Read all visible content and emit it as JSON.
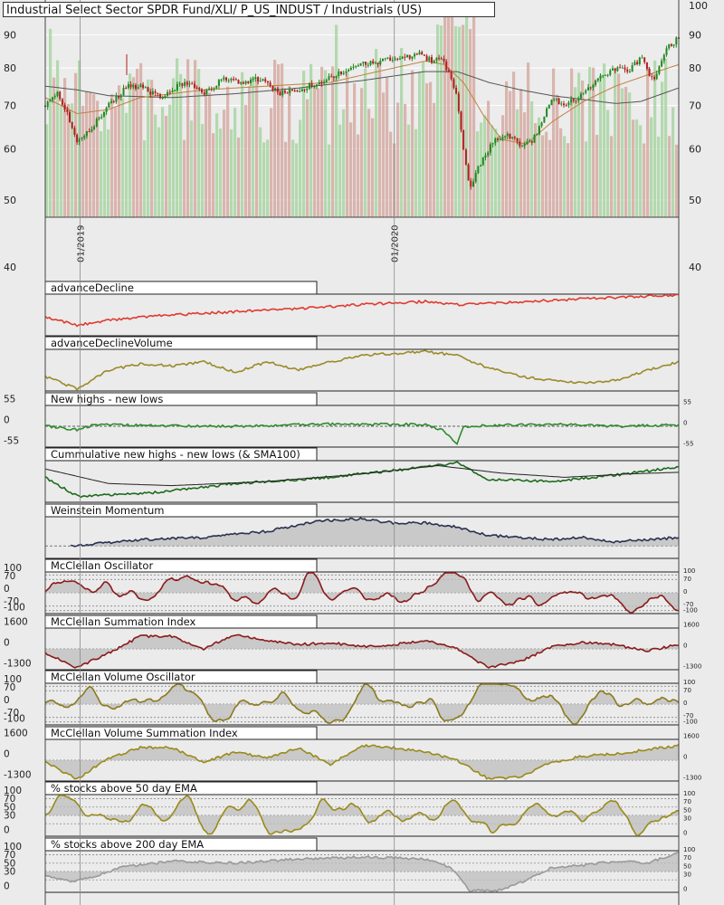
{
  "chart_data": {
    "type": "line",
    "title": "Industrial Select Sector SPDR Fund/XLI/ P_US_INDUST / Industrials (US)",
    "price_panel": {
      "type": "candlestick",
      "y_scale": "log",
      "y_ticks_left": [
        40,
        50,
        60,
        70,
        80,
        90
      ],
      "y_ticks_right": [
        40,
        50,
        60,
        70,
        80,
        90,
        100
      ],
      "x_ticks": [
        {
          "label": "01/2019",
          "t": 0.055
        },
        {
          "label": "01/2020",
          "t": 0.551
        }
      ],
      "close_path": [
        {
          "t": 0.0,
          "v": 70
        },
        {
          "t": 0.02,
          "v": 73
        },
        {
          "t": 0.04,
          "v": 66
        },
        {
          "t": 0.05,
          "v": 62
        },
        {
          "t": 0.07,
          "v": 64
        },
        {
          "t": 0.1,
          "v": 70
        },
        {
          "t": 0.13,
          "v": 75
        },
        {
          "t": 0.15,
          "v": 75
        },
        {
          "t": 0.18,
          "v": 72
        },
        {
          "t": 0.22,
          "v": 76
        },
        {
          "t": 0.25,
          "v": 73
        },
        {
          "t": 0.28,
          "v": 77
        },
        {
          "t": 0.31,
          "v": 76
        },
        {
          "t": 0.34,
          "v": 77
        },
        {
          "t": 0.37,
          "v": 73
        },
        {
          "t": 0.4,
          "v": 74
        },
        {
          "t": 0.43,
          "v": 76
        },
        {
          "t": 0.47,
          "v": 79
        },
        {
          "t": 0.5,
          "v": 81
        },
        {
          "t": 0.53,
          "v": 82
        },
        {
          "t": 0.57,
          "v": 83
        },
        {
          "t": 0.59,
          "v": 84
        },
        {
          "t": 0.61,
          "v": 82
        },
        {
          "t": 0.62,
          "v": 83
        },
        {
          "t": 0.63,
          "v": 81
        },
        {
          "t": 0.64,
          "v": 77
        },
        {
          "t": 0.65,
          "v": 72
        },
        {
          "t": 0.66,
          "v": 60
        },
        {
          "t": 0.67,
          "v": 52
        },
        {
          "t": 0.68,
          "v": 55
        },
        {
          "t": 0.69,
          "v": 58
        },
        {
          "t": 0.71,
          "v": 62
        },
        {
          "t": 0.73,
          "v": 63
        },
        {
          "t": 0.75,
          "v": 61
        },
        {
          "t": 0.77,
          "v": 62
        },
        {
          "t": 0.79,
          "v": 68
        },
        {
          "t": 0.8,
          "v": 72
        },
        {
          "t": 0.82,
          "v": 70
        },
        {
          "t": 0.84,
          "v": 72
        },
        {
          "t": 0.86,
          "v": 75
        },
        {
          "t": 0.88,
          "v": 78
        },
        {
          "t": 0.9,
          "v": 80
        },
        {
          "t": 0.92,
          "v": 79
        },
        {
          "t": 0.94,
          "v": 83
        },
        {
          "t": 0.96,
          "v": 76
        },
        {
          "t": 0.98,
          "v": 86
        },
        {
          "t": 1.0,
          "v": 89
        }
      ],
      "sma_orange": [
        {
          "t": 0.0,
          "v": 72
        },
        {
          "t": 0.05,
          "v": 68
        },
        {
          "t": 0.1,
          "v": 69
        },
        {
          "t": 0.15,
          "v": 72
        },
        {
          "t": 0.25,
          "v": 74
        },
        {
          "t": 0.35,
          "v": 75
        },
        {
          "t": 0.45,
          "v": 76
        },
        {
          "t": 0.55,
          "v": 80
        },
        {
          "t": 0.6,
          "v": 82
        },
        {
          "t": 0.63,
          "v": 81
        },
        {
          "t": 0.66,
          "v": 76
        },
        {
          "t": 0.69,
          "v": 68
        },
        {
          "t": 0.72,
          "v": 62
        },
        {
          "t": 0.76,
          "v": 61
        },
        {
          "t": 0.8,
          "v": 66
        },
        {
          "t": 0.85,
          "v": 71
        },
        {
          "t": 0.9,
          "v": 75
        },
        {
          "t": 0.95,
          "v": 78
        },
        {
          "t": 1.0,
          "v": 81
        }
      ],
      "sma_gray": [
        {
          "t": 0.0,
          "v": 75
        },
        {
          "t": 0.05,
          "v": 74
        },
        {
          "t": 0.1,
          "v": 72.5
        },
        {
          "t": 0.2,
          "v": 72
        },
        {
          "t": 0.3,
          "v": 73
        },
        {
          "t": 0.4,
          "v": 74.5
        },
        {
          "t": 0.5,
          "v": 76.5
        },
        {
          "t": 0.6,
          "v": 79
        },
        {
          "t": 0.65,
          "v": 79
        },
        {
          "t": 0.7,
          "v": 76
        },
        {
          "t": 0.75,
          "v": 74
        },
        {
          "t": 0.8,
          "v": 72.5
        },
        {
          "t": 0.85,
          "v": 71.5
        },
        {
          "t": 0.9,
          "v": 70.5
        },
        {
          "t": 0.94,
          "v": 71
        },
        {
          "t": 1.0,
          "v": 74.5
        }
      ]
    },
    "indicators": [
      {
        "name": "advanceDecline",
        "color": "#e03a2f",
        "fill": false,
        "labels": [],
        "guides": [],
        "path": [
          [
            0,
            0.55
          ],
          [
            0.05,
            0.75
          ],
          [
            0.1,
            0.62
          ],
          [
            0.2,
            0.5
          ],
          [
            0.3,
            0.42
          ],
          [
            0.4,
            0.35
          ],
          [
            0.5,
            0.25
          ],
          [
            0.6,
            0.18
          ],
          [
            0.65,
            0.25
          ],
          [
            0.7,
            0.22
          ],
          [
            0.8,
            0.15
          ],
          [
            0.9,
            0.08
          ],
          [
            1,
            0.02
          ]
        ]
      },
      {
        "name": "advanceDeclineVolume",
        "color": "#9a8a2a",
        "fill": false,
        "labels": [],
        "guides": [],
        "path": [
          [
            0,
            0.65
          ],
          [
            0.05,
            0.95
          ],
          [
            0.1,
            0.5
          ],
          [
            0.15,
            0.35
          ],
          [
            0.2,
            0.4
          ],
          [
            0.25,
            0.3
          ],
          [
            0.3,
            0.55
          ],
          [
            0.35,
            0.3
          ],
          [
            0.4,
            0.5
          ],
          [
            0.45,
            0.3
          ],
          [
            0.5,
            0.15
          ],
          [
            0.55,
            0.1
          ],
          [
            0.6,
            0.05
          ],
          [
            0.65,
            0.15
          ],
          [
            0.7,
            0.45
          ],
          [
            0.75,
            0.65
          ],
          [
            0.8,
            0.75
          ],
          [
            0.85,
            0.8
          ],
          [
            0.9,
            0.75
          ],
          [
            0.95,
            0.5
          ],
          [
            1,
            0.3
          ]
        ]
      },
      {
        "name": "New highs - new lows",
        "color": "#2e8b2e",
        "fill": false,
        "dashed_mid": true,
        "labels": [
          "55",
          "0",
          "-55"
        ],
        "guides": [],
        "path": [
          [
            0,
            0.5
          ],
          [
            0.05,
            0.58
          ],
          [
            0.08,
            0.45
          ],
          [
            0.15,
            0.48
          ],
          [
            0.3,
            0.5
          ],
          [
            0.45,
            0.45
          ],
          [
            0.6,
            0.46
          ],
          [
            0.63,
            0.6
          ],
          [
            0.65,
            0.95
          ],
          [
            0.66,
            0.5
          ],
          [
            0.8,
            0.45
          ],
          [
            0.9,
            0.5
          ],
          [
            1,
            0.47
          ]
        ]
      },
      {
        "name": "Cummulative new highs - new lows (& SMA100)",
        "color": "#1d6b1d",
        "fill": false,
        "labels": [],
        "guides": [],
        "second_color": "#222222",
        "path": [
          [
            0,
            0.4
          ],
          [
            0.05,
            0.85
          ],
          [
            0.15,
            0.8
          ],
          [
            0.3,
            0.55
          ],
          [
            0.45,
            0.4
          ],
          [
            0.6,
            0.15
          ],
          [
            0.65,
            0.05
          ],
          [
            0.7,
            0.45
          ],
          [
            0.8,
            0.5
          ],
          [
            0.9,
            0.35
          ],
          [
            1,
            0.15
          ]
        ],
        "path2": [
          [
            0,
            0.2
          ],
          [
            0.1,
            0.55
          ],
          [
            0.2,
            0.6
          ],
          [
            0.35,
            0.5
          ],
          [
            0.5,
            0.32
          ],
          [
            0.62,
            0.12
          ],
          [
            0.72,
            0.3
          ],
          [
            0.82,
            0.4
          ],
          [
            0.92,
            0.32
          ],
          [
            1,
            0.28
          ]
        ]
      },
      {
        "name": "Weinstein Momentum",
        "color": "#2a3050",
        "fill": true,
        "labels": [],
        "guides": [],
        "path": [
          [
            0.04,
            0.7
          ],
          [
            0.08,
            0.65
          ],
          [
            0.15,
            0.55
          ],
          [
            0.25,
            0.5
          ],
          [
            0.35,
            0.35
          ],
          [
            0.43,
            0.1
          ],
          [
            0.5,
            0.05
          ],
          [
            0.55,
            0.15
          ],
          [
            0.6,
            0.15
          ],
          [
            0.65,
            0.25
          ],
          [
            0.7,
            0.45
          ],
          [
            0.75,
            0.5
          ],
          [
            0.8,
            0.55
          ],
          [
            0.85,
            0.5
          ],
          [
            0.9,
            0.6
          ],
          [
            0.95,
            0.55
          ],
          [
            1,
            0.5
          ]
        ]
      },
      {
        "name": "McClellan Oscillator",
        "color": "#8b1a1a",
        "fill": true,
        "labels": [
          "100",
          "70",
          "0",
          "-70",
          "-100"
        ],
        "guides": [
          0.07,
          0.18,
          0.5,
          0.82,
          0.93
        ],
        "oscillate": true,
        "seed": 11
      },
      {
        "name": "McClellan Summation Index",
        "color": "#8b1a1a",
        "fill": true,
        "labels": [
          "1600",
          "0",
          "-1300"
        ],
        "guides": [
          0.5
        ],
        "path": [
          [
            0,
            0.6
          ],
          [
            0.05,
            0.95
          ],
          [
            0.1,
            0.6
          ],
          [
            0.15,
            0.2
          ],
          [
            0.2,
            0.2
          ],
          [
            0.25,
            0.5
          ],
          [
            0.3,
            0.15
          ],
          [
            0.35,
            0.3
          ],
          [
            0.4,
            0.4
          ],
          [
            0.45,
            0.35
          ],
          [
            0.5,
            0.45
          ],
          [
            0.55,
            0.4
          ],
          [
            0.6,
            0.3
          ],
          [
            0.65,
            0.5
          ],
          [
            0.7,
            0.95
          ],
          [
            0.75,
            0.8
          ],
          [
            0.8,
            0.45
          ],
          [
            0.85,
            0.35
          ],
          [
            0.9,
            0.4
          ],
          [
            0.95,
            0.55
          ],
          [
            1,
            0.4
          ]
        ]
      },
      {
        "name": "McClellan Volume Oscillator",
        "color": "#8b7a1a",
        "fill": true,
        "labels": [
          "100",
          "70",
          "0",
          "-70",
          "-100"
        ],
        "guides": [
          0.07,
          0.18,
          0.5,
          0.82,
          0.93
        ],
        "oscillate": true,
        "seed": 23
      },
      {
        "name": "McClellan Volume Summation Index",
        "color": "#9a8a1a",
        "fill": true,
        "labels": [
          "1600",
          "0",
          "-1300"
        ],
        "guides": [
          0.5
        ],
        "path": [
          [
            0,
            0.55
          ],
          [
            0.05,
            0.95
          ],
          [
            0.1,
            0.45
          ],
          [
            0.15,
            0.2
          ],
          [
            0.2,
            0.2
          ],
          [
            0.25,
            0.55
          ],
          [
            0.3,
            0.3
          ],
          [
            0.35,
            0.45
          ],
          [
            0.4,
            0.2
          ],
          [
            0.45,
            0.6
          ],
          [
            0.5,
            0.15
          ],
          [
            0.55,
            0.2
          ],
          [
            0.6,
            0.3
          ],
          [
            0.65,
            0.5
          ],
          [
            0.7,
            0.95
          ],
          [
            0.75,
            0.9
          ],
          [
            0.8,
            0.55
          ],
          [
            0.85,
            0.4
          ],
          [
            0.9,
            0.35
          ],
          [
            0.95,
            0.25
          ],
          [
            1,
            0.15
          ]
        ]
      },
      {
        "name": "% stocks above 50 day EMA",
        "color": "#9a8a1a",
        "fill": true,
        "labels": [
          "100",
          "70",
          "50",
          "30",
          "0"
        ],
        "guides": [
          0.1,
          0.3,
          0.5,
          0.7
        ],
        "oscillate": true,
        "seed": 37
      },
      {
        "name": "% stocks above 200 day EMA",
        "color": "#999999",
        "fill": true,
        "labels": [
          "100",
          "70",
          "50",
          "30",
          "0"
        ],
        "guides": [
          0.1,
          0.3,
          0.5,
          0.7
        ],
        "path": [
          [
            0,
            0.6
          ],
          [
            0.04,
            0.75
          ],
          [
            0.08,
            0.6
          ],
          [
            0.12,
            0.4
          ],
          [
            0.2,
            0.25
          ],
          [
            0.3,
            0.3
          ],
          [
            0.4,
            0.2
          ],
          [
            0.5,
            0.15
          ],
          [
            0.6,
            0.2
          ],
          [
            0.64,
            0.4
          ],
          [
            0.67,
            0.95
          ],
          [
            0.72,
            0.95
          ],
          [
            0.76,
            0.7
          ],
          [
            0.8,
            0.4
          ],
          [
            0.85,
            0.35
          ],
          [
            0.9,
            0.25
          ],
          [
            0.95,
            0.3
          ],
          [
            1,
            0.05
          ]
        ]
      }
    ]
  }
}
